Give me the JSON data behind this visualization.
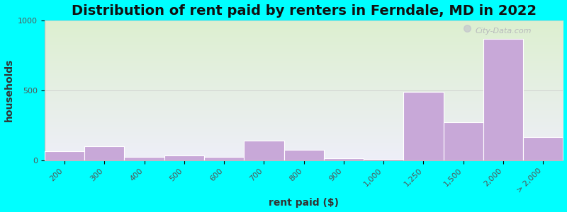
{
  "title": "Distribution of rent paid by renters in Ferndale, MD in 2022",
  "xlabel": "rent paid ($)",
  "ylabel": "households",
  "tick_labels": [
    "200",
    "300",
    "400",
    "500",
    "600",
    "700",
    "800",
    "900",
    "1,000",
    "1,250",
    "1,500",
    "2,000",
    "> 2,000"
  ],
  "bin_edges": [
    0,
    1,
    2,
    3,
    4,
    5,
    6,
    7,
    8,
    9,
    10,
    11,
    12,
    13
  ],
  "values": [
    65,
    100,
    25,
    35,
    25,
    140,
    75,
    15,
    10,
    490,
    270,
    870,
    165
  ],
  "bar_color": "#c8a8d8",
  "bar_edge_color": "#ffffff",
  "ylim": [
    0,
    1000
  ],
  "yticks": [
    0,
    500,
    1000
  ],
  "background_color": "#00ffff",
  "plot_bg_color_top": "#ddf0d0",
  "plot_bg_color_bottom": "#eeeef8",
  "title_fontsize": 14,
  "axis_label_fontsize": 10,
  "tick_fontsize": 8,
  "watermark_text": "City-Data.com"
}
